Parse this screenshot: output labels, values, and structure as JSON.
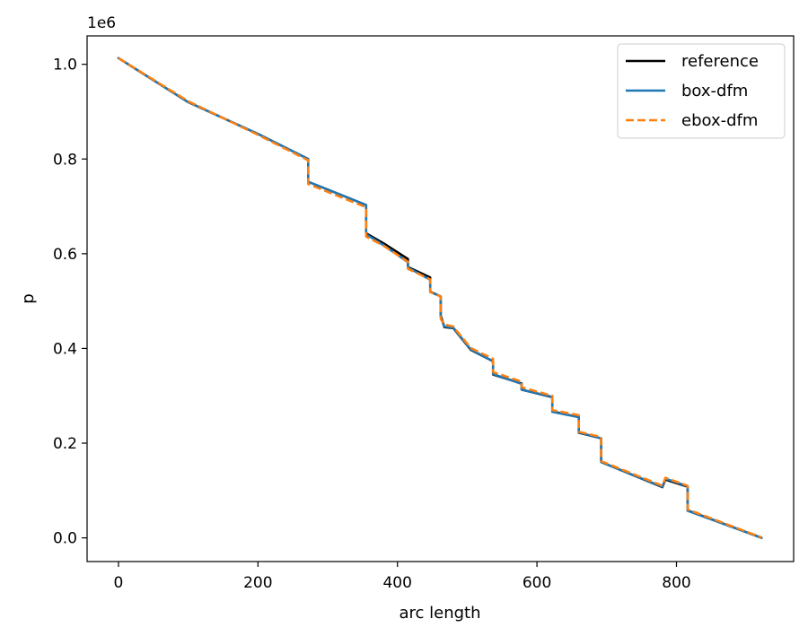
{
  "chart_data": {
    "type": "line",
    "title": "",
    "xlabel": "arc length",
    "ylabel": "p",
    "offset_text": "1e6",
    "y_scale_factor": 1000000,
    "xlim": [
      -45,
      968
    ],
    "ylim": [
      -50000,
      1060000
    ],
    "x_ticks": [
      0,
      200,
      400,
      600,
      800
    ],
    "x_tick_labels": [
      "0",
      "200",
      "400",
      "600",
      "800"
    ],
    "y_ticks": [
      0,
      200000,
      400000,
      600000,
      800000,
      1000000
    ],
    "y_tick_labels": [
      "0.0",
      "0.2",
      "0.4",
      "0.6",
      "0.8",
      "1.0"
    ],
    "grid": false,
    "legend_position": "top-right",
    "series": [
      {
        "name": "reference",
        "color": "#000000",
        "dash": "solid",
        "x": [
          0,
          100,
          200,
          272,
          272,
          355,
          355,
          380,
          415,
          415,
          447,
          447,
          462,
          462,
          467,
          467,
          480,
          505,
          537,
          537,
          578,
          578,
          622,
          622,
          660,
          660,
          692,
          692,
          780,
          784,
          816,
          816,
          922
        ],
        "y": [
          1013000,
          920000,
          853000,
          800000,
          752000,
          703000,
          643000,
          622000,
          589000,
          572000,
          550000,
          520000,
          510000,
          470000,
          446000,
          445000,
          443000,
          397000,
          373000,
          345000,
          326000,
          313000,
          297000,
          267000,
          255000,
          222000,
          210000,
          160000,
          107000,
          123000,
          108000,
          58000,
          0
        ]
      },
      {
        "name": "box-dfm",
        "color": "#1f77b4",
        "dash": "solid",
        "x": [
          0,
          100,
          200,
          272,
          272,
          355,
          355,
          380,
          415,
          415,
          447,
          447,
          462,
          462,
          467,
          467,
          480,
          505,
          537,
          537,
          578,
          578,
          622,
          622,
          660,
          660,
          692,
          692,
          780,
          784,
          816,
          816,
          922
        ],
        "y": [
          1013000,
          920000,
          853000,
          800000,
          752000,
          703000,
          641000,
          618000,
          582000,
          571000,
          545000,
          519000,
          510000,
          466000,
          446000,
          446000,
          444000,
          398000,
          373000,
          346000,
          325000,
          313000,
          298000,
          266000,
          255000,
          223000,
          210000,
          160000,
          108000,
          125000,
          109000,
          57000,
          0
        ]
      },
      {
        "name": "ebox-dfm",
        "color": "#ff7f0e",
        "dash": "dashed",
        "x": [
          0,
          100,
          200,
          272,
          272,
          355,
          355,
          380,
          415,
          415,
          447,
          447,
          462,
          462,
          467,
          467,
          480,
          505,
          537,
          537,
          578,
          578,
          622,
          622,
          660,
          660,
          692,
          692,
          780,
          784,
          816,
          816,
          922
        ],
        "y": [
          1013000,
          922000,
          851000,
          797000,
          747000,
          698000,
          636000,
          617000,
          583000,
          568000,
          546000,
          519000,
          510000,
          462000,
          451000,
          451000,
          446000,
          401000,
          378000,
          350000,
          330000,
          318000,
          300000,
          270000,
          259000,
          224000,
          213000,
          162000,
          110000,
          127000,
          110000,
          60000,
          1000
        ]
      }
    ]
  }
}
